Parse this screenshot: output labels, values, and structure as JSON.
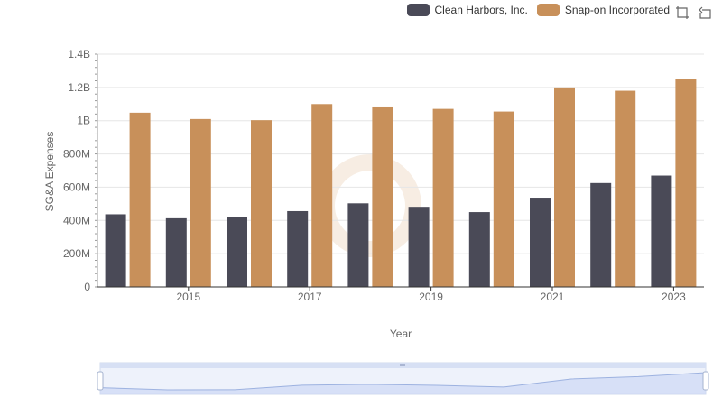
{
  "chart_data": {
    "type": "bar",
    "xlabel": "Year",
    "ylabel": "SG&A Expenses",
    "ylim": [
      0,
      1400000000
    ],
    "yticks": [
      0,
      200000000,
      400000000,
      600000000,
      800000000,
      1000000000,
      1200000000,
      1400000000
    ],
    "ytick_labels": [
      "0",
      "200M",
      "400M",
      "600M",
      "800M",
      "1B",
      "1.2B",
      "1.4B"
    ],
    "categories": [
      "2014",
      "2015",
      "2016",
      "2017",
      "2018",
      "2019",
      "2020",
      "2021",
      "2022",
      "2023"
    ],
    "xtick_labels": [
      "2015",
      "2017",
      "2019",
      "2021",
      "2023"
    ],
    "series": [
      {
        "name": "Clean Harbors, Inc.",
        "color": "#4a4a57",
        "values": [
          437000000,
          413000000,
          422000000,
          456000000,
          503000000,
          482000000,
          450000000,
          537000000,
          625000000,
          670000000
        ]
      },
      {
        "name": "Snap-on Incorporated",
        "color": "#c8905a",
        "values": [
          1048000000,
          1010000000,
          1003000000,
          1100000000,
          1080000000,
          1071000000,
          1055000000,
          1200000000,
          1180000000,
          1250000000
        ]
      }
    ],
    "grid": true,
    "legend_position": "top-right"
  },
  "toolbox": {
    "zoom_icon": "zoom-icon",
    "restore_icon": "restore-icon"
  }
}
